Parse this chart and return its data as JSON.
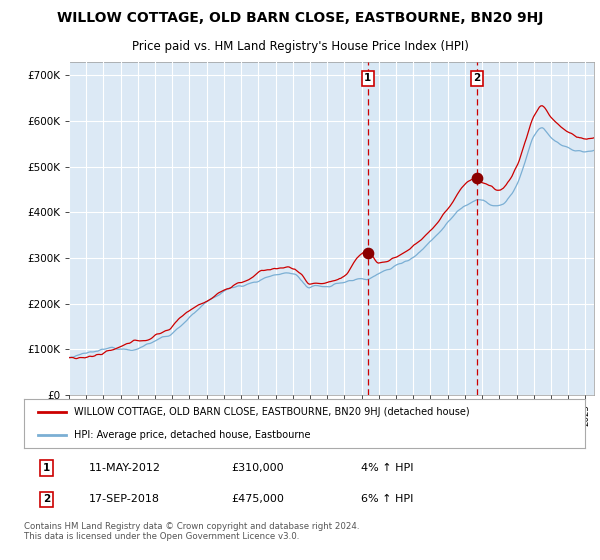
{
  "title": "WILLOW COTTAGE, OLD BARN CLOSE, EASTBOURNE, BN20 9HJ",
  "subtitle": "Price paid vs. HM Land Registry's House Price Index (HPI)",
  "title_fontsize": 10,
  "subtitle_fontsize": 8.5,
  "property_color": "#cc0000",
  "hpi_color": "#7bafd4",
  "shade_color": "#d8e8f5",
  "background_color": "#ffffff",
  "plot_bg_color": "#dce9f5",
  "grid_color": "#ffffff",
  "ylim": [
    0,
    730000
  ],
  "yticks": [
    0,
    100000,
    200000,
    300000,
    400000,
    500000,
    600000,
    700000
  ],
  "ytick_labels": [
    "£0",
    "£100K",
    "£200K",
    "£300K",
    "£400K",
    "£500K",
    "£600K",
    "£700K"
  ],
  "xmin": 1995,
  "xmax": 2025.5,
  "sale1_date": 2012.36,
  "sale1_price": 310000,
  "sale2_date": 2018.71,
  "sale2_price": 475000,
  "legend_property": "WILLOW COTTAGE, OLD BARN CLOSE, EASTBOURNE, BN20 9HJ (detached house)",
  "legend_hpi": "HPI: Average price, detached house, Eastbourne",
  "annotation1_date": "11-MAY-2012",
  "annotation1_price": "£310,000",
  "annotation1_pct": "4% ↑ HPI",
  "annotation2_date": "17-SEP-2018",
  "annotation2_price": "£475,000",
  "annotation2_pct": "6% ↑ HPI",
  "footer": "Contains HM Land Registry data © Crown copyright and database right 2024.\nThis data is licensed under the Open Government Licence v3.0."
}
